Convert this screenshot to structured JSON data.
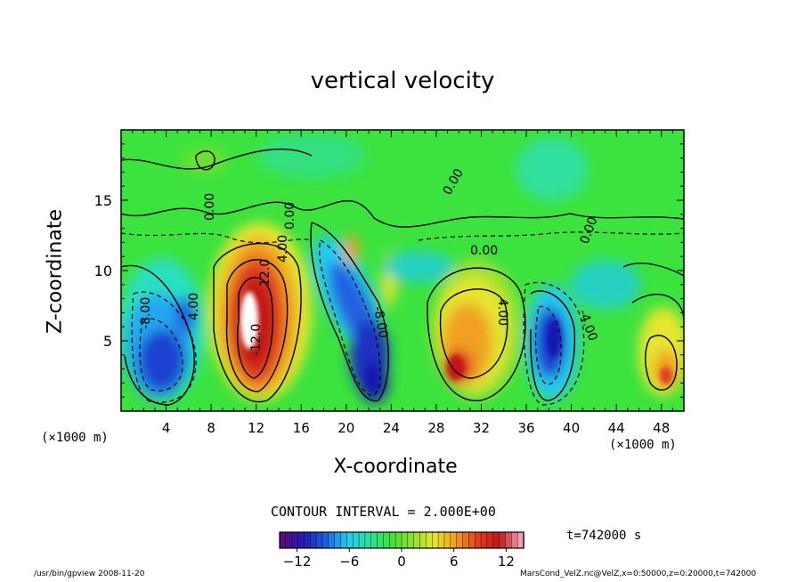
{
  "chart_data": {
    "type": "heatmap",
    "title": "vertical velocity",
    "xlabel": "X-coordinate",
    "ylabel": "Z-coordinate",
    "x_unit": "(×1000 m)",
    "x_ticks": [
      4,
      8,
      12,
      16,
      20,
      24,
      28,
      32,
      36,
      40,
      44,
      48
    ],
    "y_ticks": [
      5,
      10,
      15
    ],
    "xlim": [
      0,
      50
    ],
    "ylim": [
      0,
      20
    ],
    "contour_interval": "CONTOUR INTERVAL = 2.000E+00",
    "contour_labels": [
      "0.00",
      "-8.00",
      "4.00",
      "-12.0",
      "12.0",
      "4.00",
      "0.00",
      "-8.00",
      "4.00",
      "-4.00",
      "0.00",
      "0.00",
      "0.00"
    ],
    "colorbar": {
      "ticks": [
        -12,
        -6,
        0,
        6,
        12
      ],
      "range": [
        -14,
        14
      ],
      "stops": [
        "#5a0a7a",
        "#1e1eb4",
        "#2060e0",
        "#28c8f0",
        "#2ee0a0",
        "#3ee23a",
        "#8ee030",
        "#e6e630",
        "#f0a020",
        "#e04020",
        "#c01818",
        "#f0a0b0"
      ]
    },
    "features": [
      {
        "x": 12,
        "z": 6,
        "w": 14
      },
      {
        "x": 3.5,
        "z": 3.5,
        "w": -10
      },
      {
        "x": 21,
        "z": 6,
        "w": -9
      },
      {
        "x": 22.5,
        "z": 3,
        "w": -10
      },
      {
        "x": 30,
        "z": 5,
        "w": 8
      },
      {
        "x": 30,
        "z": 3,
        "w": 10
      },
      {
        "x": 38,
        "z": 5,
        "w": -10
      },
      {
        "x": 48.5,
        "z": 3,
        "w": 8
      }
    ]
  },
  "time_label": "t=742000 s",
  "footer": {
    "left": "/usr/bin/gpview  2008-11-20",
    "right": "MarsCond_VelZ.nc@VelZ,x=0:50000,z=0:20000,t=742000"
  }
}
